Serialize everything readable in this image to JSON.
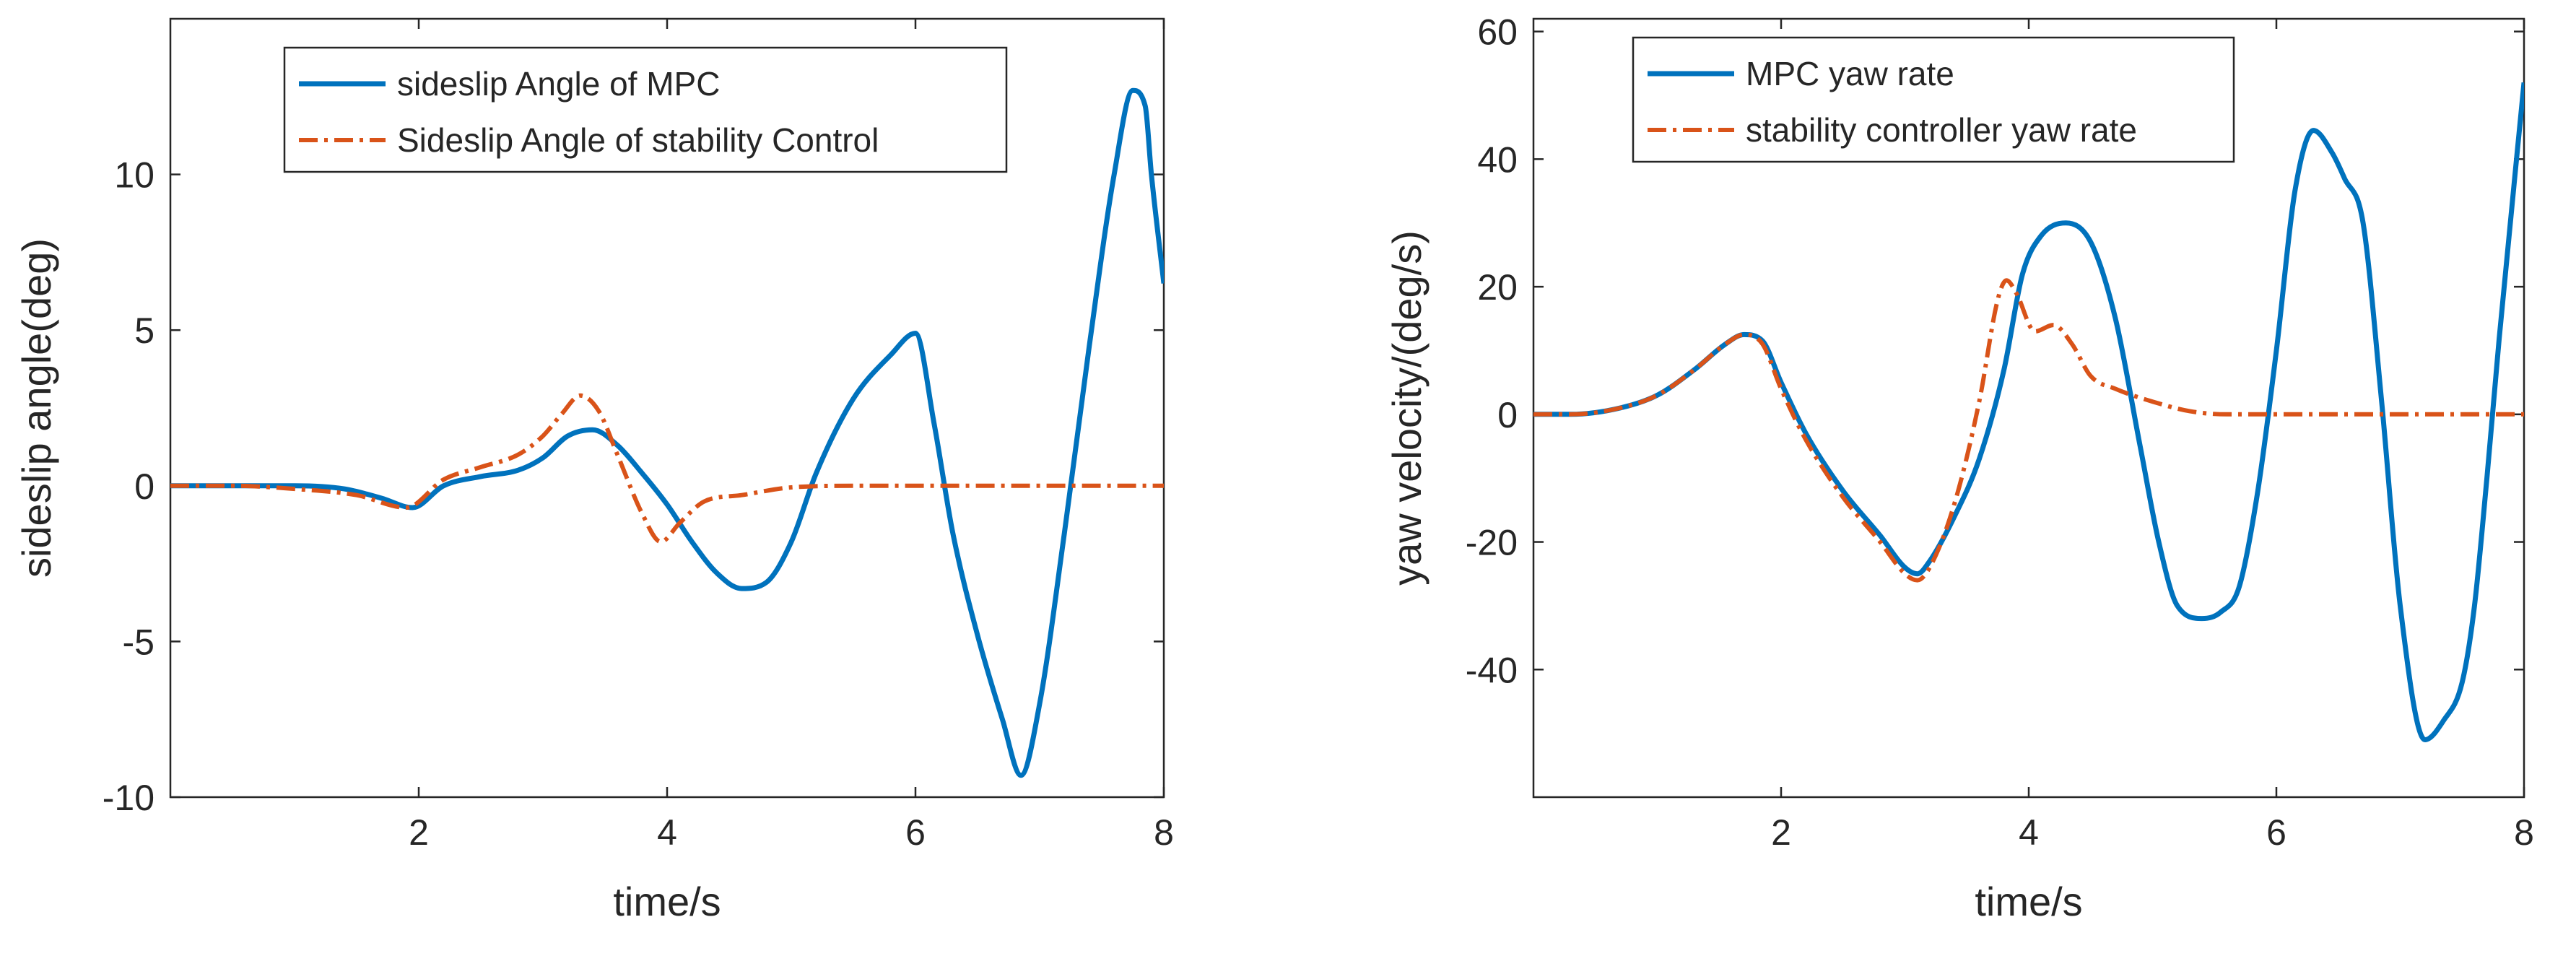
{
  "colors": {
    "mpc": "#0072BD",
    "stability": "#D95319",
    "axis": "#262626"
  },
  "chart_data": [
    {
      "type": "line",
      "xlabel": "time/s",
      "ylabel": "sideslip angle(deg)",
      "xlim": [
        0,
        8
      ],
      "ylim": [
        -10,
        15
      ],
      "xticks": [
        2,
        4,
        6,
        8
      ],
      "yticks": [
        -10,
        -5,
        0,
        5,
        10
      ],
      "grid": false,
      "legend_position": "top-center",
      "series": [
        {
          "name": "sideslip Angle of MPC",
          "style": "solid",
          "x": [
            0,
            0.5,
            1.0,
            1.4,
            1.7,
            1.95,
            2.2,
            2.5,
            2.8,
            3.0,
            3.2,
            3.4,
            3.6,
            3.8,
            4.0,
            4.2,
            4.4,
            4.6,
            4.8,
            5.0,
            5.2,
            5.5,
            5.8,
            6.0,
            6.15,
            6.3,
            6.5,
            6.7,
            6.85,
            7.0,
            7.2,
            7.4,
            7.6,
            7.75,
            7.85,
            7.9,
            8.0
          ],
          "y": [
            0,
            0,
            0,
            -0.1,
            -0.4,
            -0.7,
            0,
            0.3,
            0.5,
            0.9,
            1.6,
            1.8,
            1.3,
            0.4,
            -0.6,
            -1.8,
            -2.8,
            -3.3,
            -3.1,
            -1.8,
            0.4,
            2.8,
            4.2,
            4.9,
            2.0,
            -1.5,
            -4.8,
            -7.5,
            -9.3,
            -7.0,
            -1.5,
            4.5,
            10.0,
            12.7,
            12.2,
            10.0,
            6.5
          ]
        },
        {
          "name": "Sideslip Angle of stability Control",
          "style": "dashdot",
          "x": [
            0,
            0.5,
            1.0,
            1.5,
            1.9,
            2.2,
            2.5,
            2.8,
            3.0,
            3.15,
            3.3,
            3.45,
            3.6,
            3.8,
            3.95,
            4.1,
            4.3,
            4.6,
            5.0,
            5.5,
            6.0,
            7.0,
            8.0
          ],
          "y": [
            0,
            0,
            -0.1,
            -0.3,
            -0.7,
            0.2,
            0.6,
            1.0,
            1.6,
            2.3,
            2.9,
            2.4,
            1.0,
            -0.9,
            -1.8,
            -1.2,
            -0.5,
            -0.3,
            -0.05,
            0,
            0,
            0,
            0
          ]
        }
      ]
    },
    {
      "type": "line",
      "xlabel": "time/s",
      "ylabel": "yaw velocity/(deg/s)",
      "xlim": [
        0,
        8
      ],
      "ylim": [
        -60,
        62
      ],
      "xticks": [
        2,
        4,
        6,
        8
      ],
      "yticks": [
        -40,
        -20,
        0,
        20,
        40,
        60
      ],
      "grid": false,
      "legend_position": "top-left",
      "series": [
        {
          "name": "MPC yaw rate",
          "style": "solid",
          "x": [
            0,
            0.3,
            0.7,
            1.0,
            1.3,
            1.55,
            1.7,
            1.85,
            2.0,
            2.2,
            2.5,
            2.8,
            3.0,
            3.1,
            3.2,
            3.4,
            3.6,
            3.8,
            3.95,
            4.1,
            4.3,
            4.5,
            4.7,
            4.9,
            5.05,
            5.2,
            5.4,
            5.55,
            5.7,
            5.85,
            6.0,
            6.15,
            6.3,
            6.45,
            6.55,
            6.7,
            6.85,
            7.0,
            7.2,
            7.35,
            7.5,
            7.6,
            7.7,
            7.8,
            8.0
          ],
          "y": [
            0,
            0,
            1,
            3,
            7,
            11,
            12.5,
            11.5,
            5,
            -3,
            -12,
            -19,
            -24,
            -25,
            -23,
            -16,
            -7,
            7,
            22,
            28,
            30,
            27,
            15,
            -5,
            -20,
            -30,
            -32,
            -31,
            -27,
            -12,
            10,
            35,
            44.5,
            41,
            37,
            30,
            2,
            -30,
            -51,
            -48,
            -42,
            -30,
            -10,
            12,
            52
          ]
        },
        {
          "name": "stability controller yaw rate",
          "style": "dashdot",
          "x": [
            0,
            0.3,
            0.7,
            1.0,
            1.3,
            1.55,
            1.7,
            1.85,
            2.0,
            2.2,
            2.5,
            2.8,
            3.0,
            3.1,
            3.2,
            3.4,
            3.6,
            3.75,
            3.82,
            3.9,
            4.05,
            4.2,
            4.35,
            4.5,
            4.7,
            5.0,
            5.3,
            5.6,
            6.0,
            7.0,
            8.0
          ],
          "y": [
            0,
            0,
            1,
            3,
            7,
            11,
            12.5,
            11,
            4,
            -4,
            -13,
            -20,
            -25,
            -26,
            -24,
            -14,
            2,
            18,
            21,
            19,
            13,
            14,
            11,
            6,
            4,
            2,
            0.5,
            0,
            0,
            0,
            0
          ]
        }
      ]
    }
  ]
}
